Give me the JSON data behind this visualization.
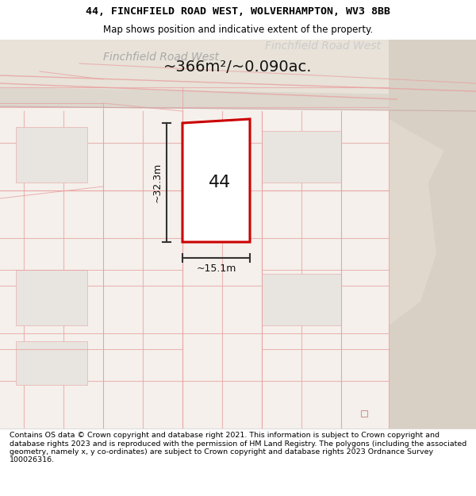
{
  "title_line1": "44, FINCHFIELD ROAD WEST, WOLVERHAMPTON, WV3 8BB",
  "title_line2": "Map shows position and indicative extent of the property.",
  "footer_text": "Contains OS data © Crown copyright and database right 2021. This information is subject to Crown copyright and database rights 2023 and is reproduced with the permission of HM Land Registry. The polygons (including the associated geometry, namely x, y co-ordinates) are subject to Crown copyright and database rights 2023 Ordnance Survey 100026316.",
  "area_label": "~366m²/~0.090ac.",
  "width_label": "~15.1m",
  "height_label": "~32.3m",
  "house_number": "44",
  "road_label_left": "Finchfield Road West",
  "road_label_right": "Finchfield Road West",
  "bg_color": "#f5f0eb",
  "map_bg": "#f5f0eb",
  "road_area_color": "#e8e0d5",
  "plot_fill": "#ffffff",
  "plot_border": "#cc0000",
  "grid_line_color": "#e8b0b0",
  "building_fill": "#e0ddd8",
  "title_bg": "#ffffff",
  "footer_bg": "#ffffff"
}
